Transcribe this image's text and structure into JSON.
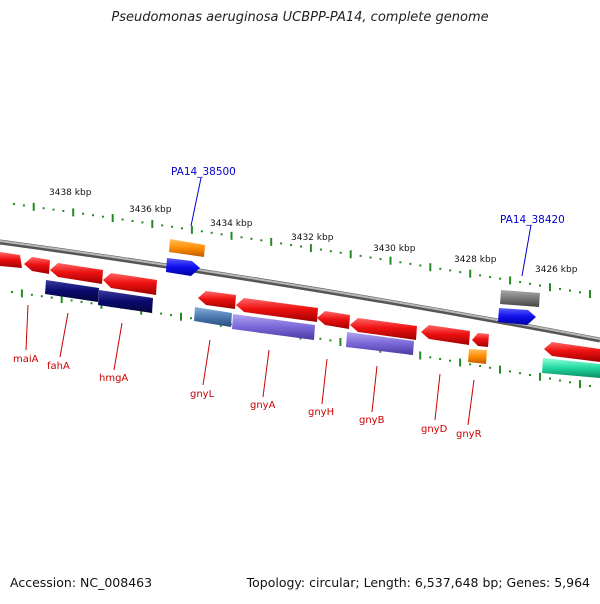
{
  "title": "Pseudomonas aeruginosa UCBPP-PA14, complete genome",
  "footer": {
    "accession": "Accession: NC_008463",
    "stats": "Topology: circular; Length: 6,537,648 bp; Genes: 5,964"
  },
  "scale_labels": [
    "3438 kbp",
    "3436 kbp",
    "3434 kbp",
    "3432 kbp",
    "3430 kbp",
    "3428 kbp",
    "3426 kbp"
  ],
  "locus_labels": [
    "PA14_38500",
    "PA14_38420"
  ],
  "gene_labels": [
    "maiA",
    "fahA",
    "hmgA",
    "gnyL",
    "gnyA",
    "gnyH",
    "gnyB",
    "gnyD",
    "gnyR"
  ],
  "colors": {
    "cds": "#ee1111",
    "backbone": "#888888",
    "tick": "#228B22",
    "locus_label": "#0000cc",
    "gene_label": "#cc0000",
    "orange": "#ff8c00",
    "blue": "#1010ee",
    "gray": "#777777",
    "navy": "#0a0a6e",
    "steel": "#4a7ab0",
    "lavender": "#7b68d8",
    "teal": "#20d8a0"
  }
}
